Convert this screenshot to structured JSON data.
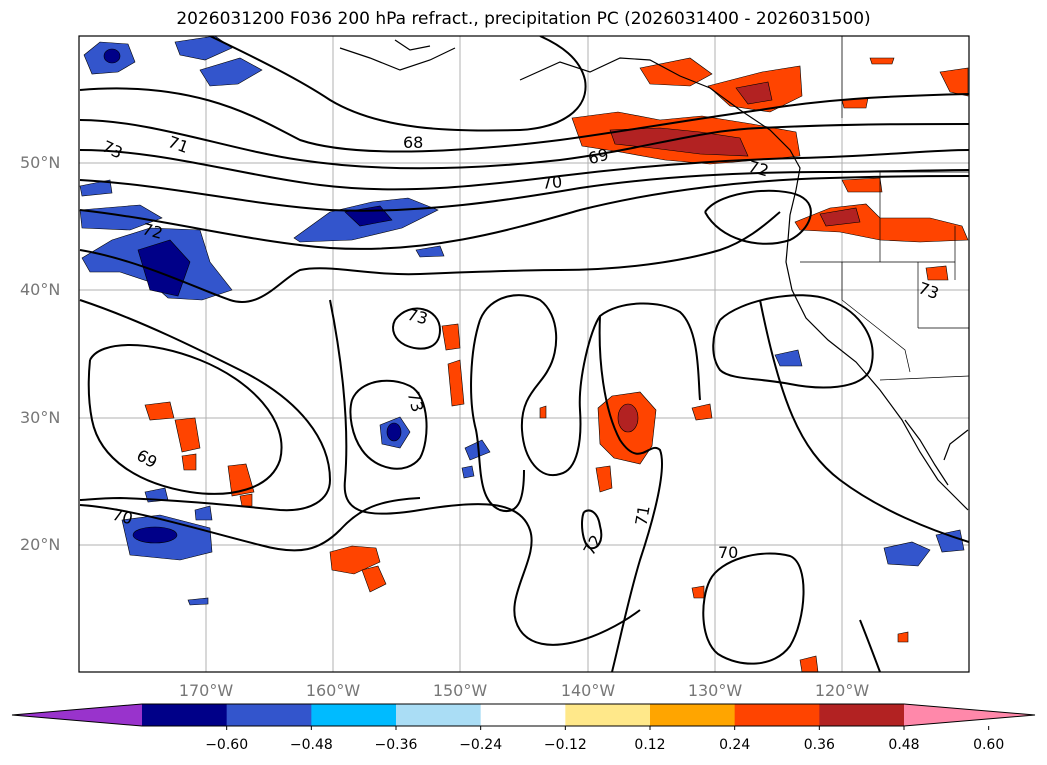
{
  "title": "2026031200 F036 200 hPa refract., precipitation PC (2026031400 - 2026031500)",
  "lat_labels": [
    "50°N",
    "40°N",
    "30°N",
    "20°N"
  ],
  "lon_labels": [
    "170°W",
    "160°W",
    "150°W",
    "140°W",
    "130°W",
    "120°W"
  ],
  "contour_labels": [
    "73",
    "71",
    "72",
    "68",
    "69",
    "70",
    "72",
    "73",
    "73",
    "73",
    "69",
    "70",
    "72",
    "71",
    "70"
  ],
  "colorbar": {
    "ticks": [
      "−0.60",
      "−0.48",
      "−0.36",
      "−0.24",
      "−0.12",
      "0.12",
      "0.24",
      "0.36",
      "0.48",
      "0.60"
    ],
    "colors": [
      "#9933cc",
      "#000088",
      "#3355cc",
      "#00bbff",
      "#aaddf5",
      "#ffffff",
      "#ffe88a",
      "#ffa500",
      "#ff4400",
      "#b22222",
      "#ff88aa"
    ]
  }
}
